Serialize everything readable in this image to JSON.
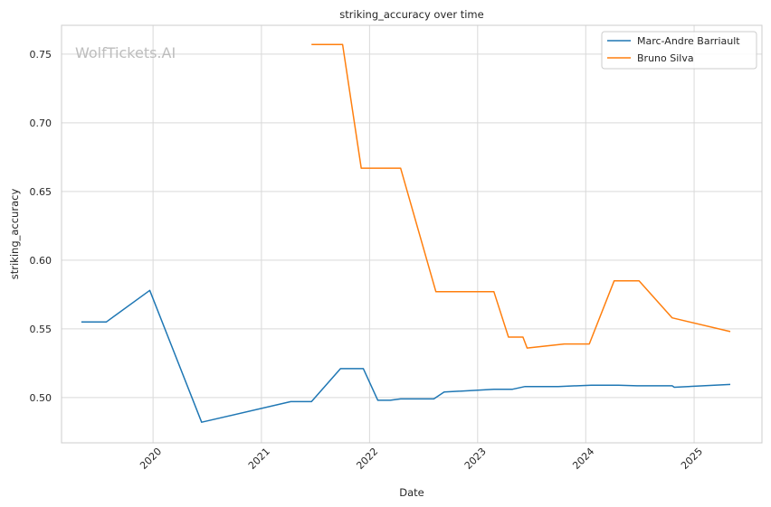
{
  "watermark": "WolfTickets.AI",
  "chart_data": {
    "type": "line",
    "title": "striking_accuracy over time",
    "xlabel": "Date",
    "ylabel": "striking_accuracy",
    "xlim": [
      "2019-02-26",
      "2025-08-18"
    ],
    "ylim": [
      0.467,
      0.771
    ],
    "x_ticks": [
      "2020",
      "2021",
      "2022",
      "2023",
      "2024",
      "2025"
    ],
    "y_ticks": [
      "0.50",
      "0.55",
      "0.60",
      "0.65",
      "0.70",
      "0.75"
    ],
    "y_tick_values": [
      0.5,
      0.55,
      0.6,
      0.65,
      0.7,
      0.75
    ],
    "grid": true,
    "legend_position": "top-right",
    "series": [
      {
        "name": "Marc-Andre Barriault",
        "color": "#1f77b4",
        "points": [
          [
            "2019-05-04",
            0.555
          ],
          [
            "2019-07-27",
            0.555
          ],
          [
            "2019-12-21",
            0.578
          ],
          [
            "2020-06-13",
            0.482
          ],
          [
            "2021-04-10",
            0.497
          ],
          [
            "2021-06-19",
            0.497
          ],
          [
            "2021-09-25",
            0.521
          ],
          [
            "2021-12-11",
            0.521
          ],
          [
            "2022-01-29",
            0.498
          ],
          [
            "2022-03-12",
            0.498
          ],
          [
            "2022-04-16",
            0.499
          ],
          [
            "2022-08-06",
            0.499
          ],
          [
            "2022-09-10",
            0.504
          ],
          [
            "2023-02-25",
            0.506
          ],
          [
            "2023-04-29",
            0.506
          ],
          [
            "2023-06-10",
            0.508
          ],
          [
            "2023-09-30",
            0.508
          ],
          [
            "2024-01-20",
            0.509
          ],
          [
            "2024-04-20",
            0.509
          ],
          [
            "2024-06-22",
            0.5085
          ],
          [
            "2024-10-19",
            0.5085
          ],
          [
            "2024-10-26",
            0.5075
          ],
          [
            "2025-05-03",
            0.5095
          ]
        ]
      },
      {
        "name": "Bruno Silva",
        "color": "#ff7f0e",
        "points": [
          [
            "2021-06-19",
            0.757
          ],
          [
            "2021-10-02",
            0.757
          ],
          [
            "2021-12-04",
            0.667
          ],
          [
            "2022-04-16",
            0.667
          ],
          [
            "2022-08-13",
            0.577
          ],
          [
            "2023-02-25",
            0.577
          ],
          [
            "2023-04-15",
            0.544
          ],
          [
            "2023-06-03",
            0.544
          ],
          [
            "2023-06-17",
            0.536
          ],
          [
            "2023-10-21",
            0.539
          ],
          [
            "2024-01-13",
            0.539
          ],
          [
            "2024-04-06",
            0.585
          ],
          [
            "2024-06-29",
            0.585
          ],
          [
            "2024-10-19",
            0.558
          ],
          [
            "2025-05-03",
            0.548
          ]
        ]
      }
    ]
  }
}
